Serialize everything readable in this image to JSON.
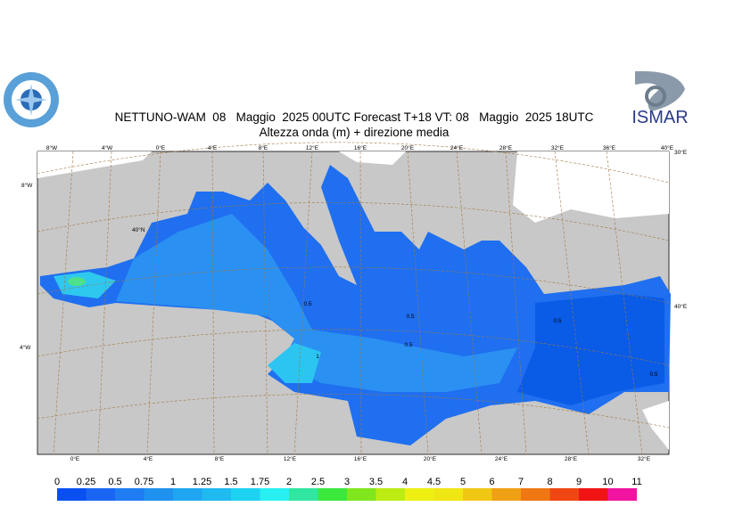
{
  "header": {
    "title": "NETTUNO-WAM  08   Maggio  2025 00UTC Forecast T+18 VT: 08   Maggio  2025 18UTC",
    "subtitle": "Altezza onda (m) + direzione media"
  },
  "logo": {
    "text": "ISMAR"
  },
  "map": {
    "top_labels": [
      "8°W",
      "4°W",
      "0°E",
      "4°E",
      "8°E",
      "12°E",
      "16°E",
      "20°E",
      "24°E",
      "28°E",
      "32°E",
      "36°E",
      "40°E"
    ],
    "side_labels": [
      "8°W",
      "40°N",
      "4°W",
      "30°E",
      "40°E"
    ],
    "bottom_labels": [
      "0°E",
      "4°E",
      "8°E",
      "12°E",
      "16°E",
      "20°E",
      "24°E",
      "28°E",
      "32°E"
    ],
    "contour_labels": [
      "0.5",
      "0.5",
      "0.5",
      "0.5",
      "1",
      "0.5"
    ]
  },
  "legend": {
    "labels": [
      0,
      0.25,
      0.5,
      0.75,
      1,
      1.25,
      1.5,
      1.75,
      2,
      2.5,
      3,
      3.5,
      4,
      4.5,
      5,
      6,
      7,
      8,
      9,
      10,
      11
    ],
    "colors": [
      "#0a50f0",
      "#1a66f2",
      "#1f7cf2",
      "#1f92f0",
      "#1fa6f0",
      "#1fbaf0",
      "#1ed2f2",
      "#28f0f0",
      "#30e6a0",
      "#3ce83c",
      "#80e61e",
      "#bcec14",
      "#eef014",
      "#f0e614",
      "#f0c814",
      "#f0a014",
      "#f07814",
      "#f04614",
      "#f01414",
      "#f014a0"
    ]
  }
}
